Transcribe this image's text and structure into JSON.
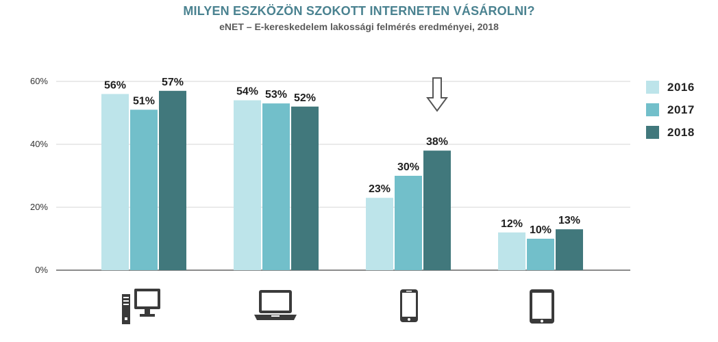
{
  "header": {
    "title": "MILYEN ESZKÖZÖN SZOKOTT INTERNETEN VÁSÁROLNI?",
    "subtitle": "eNET – E-kereskedelem lakossági felmérés eredményei, 2018"
  },
  "colors": {
    "series_2016": "#bde4ea",
    "series_2017": "#72bfca",
    "series_2018": "#41787c",
    "title": "#4a8290",
    "arrow": "#555555"
  },
  "chart_data": {
    "type": "bar",
    "title": "MILYEN ESZKÖZÖN SZOKOTT INTERNETEN VÁSÁROLNI?",
    "subtitle": "eNET – E-kereskedelem lakossági felmérés eredményei, 2018",
    "categories": [
      "desktop-computer-icon",
      "laptop-icon",
      "smartphone-icon",
      "tablet-icon"
    ],
    "series": [
      {
        "name": "2016",
        "values": [
          56,
          54,
          23,
          12
        ],
        "labels": [
          "56%",
          "54%",
          "23%",
          "12%"
        ]
      },
      {
        "name": "2017",
        "values": [
          51,
          53,
          30,
          10
        ],
        "labels": [
          "51%",
          "53%",
          "30%",
          "10%"
        ]
      },
      {
        "name": "2018",
        "values": [
          57,
          52,
          38,
          13
        ],
        "labels": [
          "57%",
          "52%",
          "38%",
          "13%"
        ]
      }
    ],
    "ylim": [
      0,
      60
    ],
    "yticks": [
      0,
      20,
      40,
      60
    ],
    "ytick_labels": [
      "0%",
      "20%",
      "40%",
      "60%"
    ],
    "xlabel": "",
    "ylabel": "",
    "grid": true,
    "legend_position": "right",
    "annotation": "down-arrow-icon above smartphone group"
  }
}
